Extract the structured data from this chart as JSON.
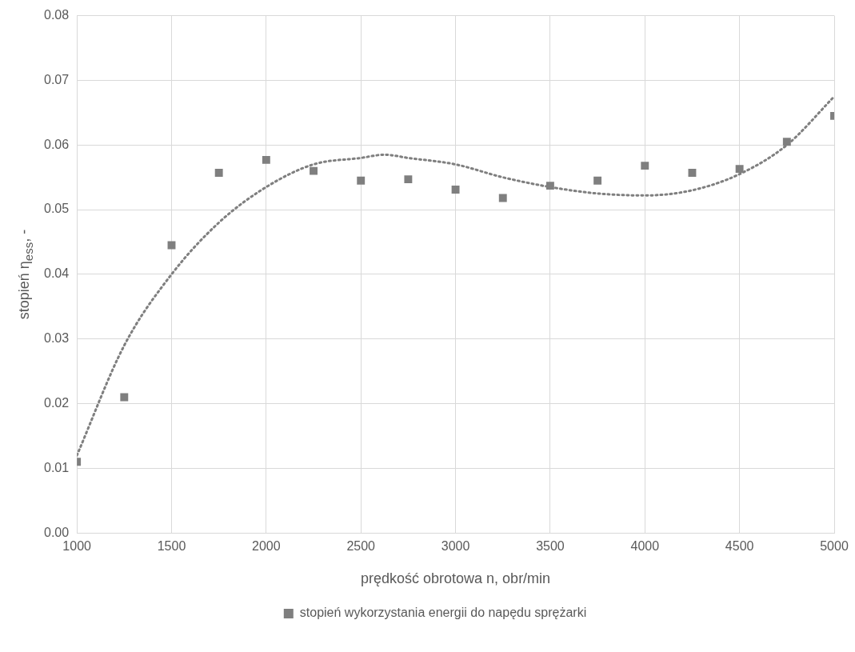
{
  "chart_data": {
    "type": "scatter",
    "xlabel": "prędkość obrotowa n, obr/min",
    "ylabel": "stopień η$_{ess}$, -",
    "x": [
      1000,
      1250,
      1500,
      1750,
      2000,
      2250,
      2500,
      2750,
      3000,
      3250,
      3500,
      3750,
      4000,
      4250,
      4500,
      4750,
      5000
    ],
    "series": [
      {
        "name": "stopień wykorzystania energii do napędu sprężarki",
        "color": "#7f7f7f",
        "marker": "square",
        "values": [
          0.011,
          0.021,
          0.0445,
          0.0557,
          0.0577,
          0.056,
          0.0545,
          0.0547,
          0.0531,
          0.0518,
          0.0537,
          0.0545,
          0.0568,
          0.0557,
          0.0563,
          0.0605,
          0.0645
        ]
      },
      {
        "type": "line",
        "color": "#7f7f7f",
        "line_style": "dotted",
        "marker": "none",
        "x": [
          1000,
          1250,
          1500,
          1750,
          2000,
          2250,
          2500,
          2625,
          2750,
          3000,
          3250,
          3500,
          3750,
          4000,
          4250,
          4500,
          4750,
          5000
        ],
        "values": [
          0.012,
          0.029,
          0.04,
          0.048,
          0.0535,
          0.057,
          0.058,
          0.0585,
          0.058,
          0.057,
          0.055,
          0.0535,
          0.0525,
          0.0522,
          0.053,
          0.0555,
          0.06,
          0.0675
        ]
      }
    ],
    "xlim": [
      1000,
      5000
    ],
    "xticks": [
      1000,
      1500,
      2000,
      2500,
      3000,
      3500,
      4000,
      4500,
      5000
    ],
    "ylim": [
      0,
      0.08
    ],
    "yticks": [
      {
        "value": 0,
        "label": "0.00"
      },
      0.01,
      0.02,
      0.03,
      0.04,
      0.05,
      0.06,
      0.07,
      0.08
    ],
    "grid": true,
    "legend": "bottom"
  }
}
